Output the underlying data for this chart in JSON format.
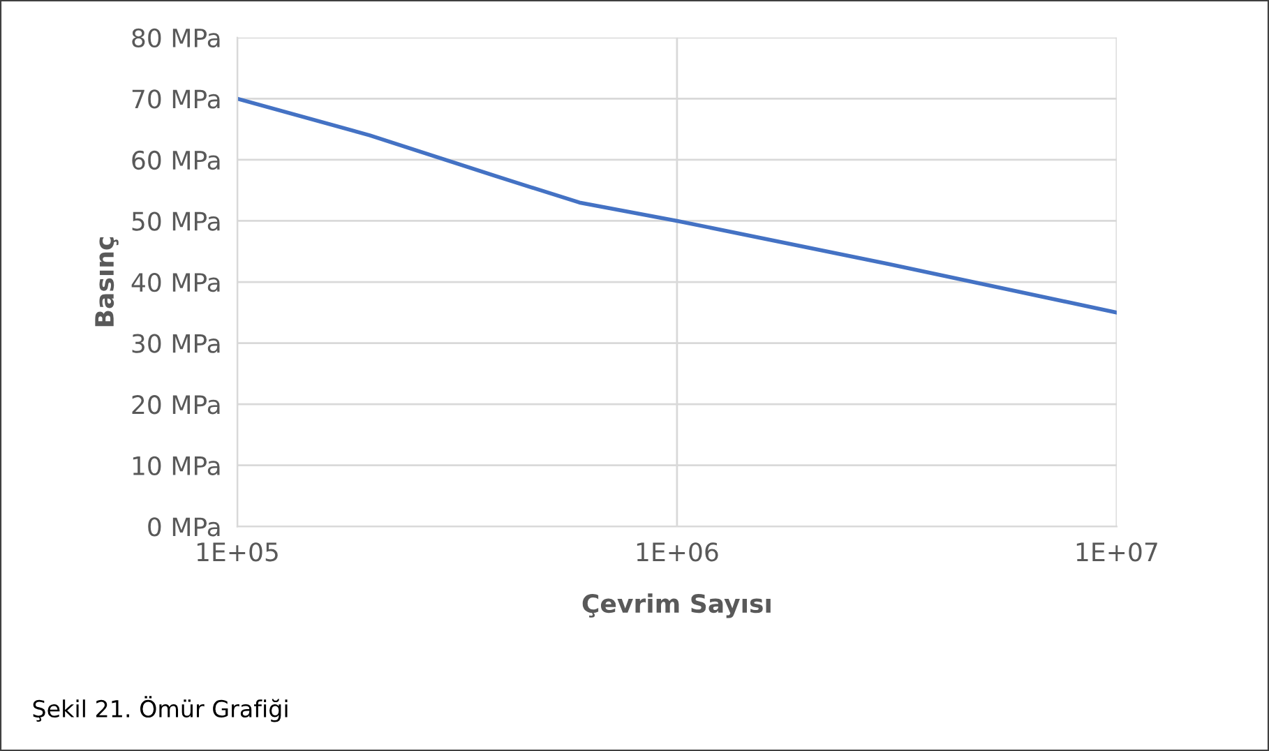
{
  "chart_data": {
    "type": "line",
    "xlabel": "Çevrim Sayısı",
    "ylabel": "Basınç",
    "x": [
      100000,
      200000,
      400000,
      600000,
      1000000,
      3000000,
      10000000
    ],
    "series": [
      {
        "color": "#4472c4",
        "values": [
          70,
          64,
          57,
          53,
          50,
          43,
          35
        ]
      }
    ],
    "log": "x",
    "xlim": [
      100000,
      10000000
    ],
    "xticks": [
      {
        "value": 100000,
        "label": "1E+05"
      },
      {
        "value": 1000000,
        "label": "1E+06"
      },
      {
        "value": 10000000,
        "label": "1E+07"
      }
    ],
    "ylim": [
      0,
      80
    ],
    "yticks": [
      {
        "value": 0,
        "label": "0 MPa"
      },
      {
        "value": 10,
        "label": "10 MPa"
      },
      {
        "value": 20,
        "label": "20 MPa"
      },
      {
        "value": 30,
        "label": "30 MPa"
      },
      {
        "value": 40,
        "label": "40 MPa"
      },
      {
        "value": 50,
        "label": "50 MPa"
      },
      {
        "value": 60,
        "label": "60 MPa"
      },
      {
        "value": 70,
        "label": "70 MPa"
      },
      {
        "value": 80,
        "label": "80 MPa"
      }
    ],
    "grid": true,
    "line_style": "solid",
    "marker": "none",
    "annotations": [
      "Şekil 21. Ömür Grafiği"
    ]
  }
}
